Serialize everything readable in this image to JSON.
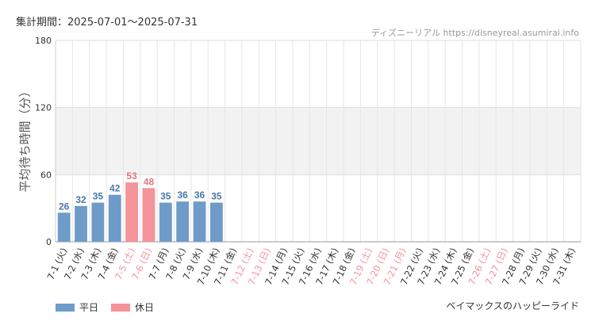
{
  "header": {
    "period": "集計期間：2025-07-01〜2025-07-31",
    "site": "ディズニーリアル https://disneyreal.asumirai.info"
  },
  "footer": {
    "attraction": "ベイマックスのハッピーライド"
  },
  "colors": {
    "weekday": "#6f9bc9",
    "holiday": "#f4939a",
    "weekday_label": "#4a77a8",
    "holiday_label": "#e6737e",
    "band": "#f2f2f2"
  },
  "chart_data": {
    "type": "bar",
    "ylabel": "平均待ち時間（分）",
    "xlabel": "",
    "ylim": [
      0,
      180
    ],
    "yticks": [
      0,
      60,
      120,
      180
    ],
    "band": [
      60,
      120
    ],
    "grid": true,
    "legend_position": "bottom-left",
    "categories": [
      "7-1 (火)",
      "7-2 (水)",
      "7-3 (木)",
      "7-4 (金)",
      "7-5 (土)",
      "7-6 (日)",
      "7-7 (月)",
      "7-8 (火)",
      "7-9 (水)",
      "7-10 (木)",
      "7-11 (金)",
      "7-12 (土)",
      "7-13 (日)",
      "7-14 (月)",
      "7-15 (火)",
      "7-16 (水)",
      "7-17 (木)",
      "7-18 (金)",
      "7-19 (土)",
      "7-20 (日)",
      "7-21 (月)",
      "7-22 (火)",
      "7-23 (水)",
      "7-24 (木)",
      "7-25 (金)",
      "7-26 (土)",
      "7-27 (日)",
      "7-28 (月)",
      "7-29 (火)",
      "7-30 (水)",
      "7-31 (木)"
    ],
    "holidays": [
      false,
      false,
      false,
      false,
      true,
      true,
      false,
      false,
      false,
      false,
      false,
      true,
      true,
      false,
      false,
      false,
      false,
      false,
      true,
      true,
      true,
      false,
      false,
      false,
      false,
      true,
      true,
      false,
      false,
      false,
      false
    ],
    "series": [
      {
        "name": "平日",
        "values": [
          26,
          32,
          35,
          42,
          null,
          null,
          35,
          36,
          36,
          35,
          null,
          null,
          null,
          null,
          null,
          null,
          null,
          null,
          null,
          null,
          null,
          null,
          null,
          null,
          null,
          null,
          null,
          null,
          null,
          null,
          null
        ]
      },
      {
        "name": "休日",
        "values": [
          null,
          null,
          null,
          null,
          53,
          48,
          null,
          null,
          null,
          null,
          null,
          null,
          null,
          null,
          null,
          null,
          null,
          null,
          null,
          null,
          null,
          null,
          null,
          null,
          null,
          null,
          null,
          null,
          null,
          null,
          null
        ]
      }
    ]
  }
}
